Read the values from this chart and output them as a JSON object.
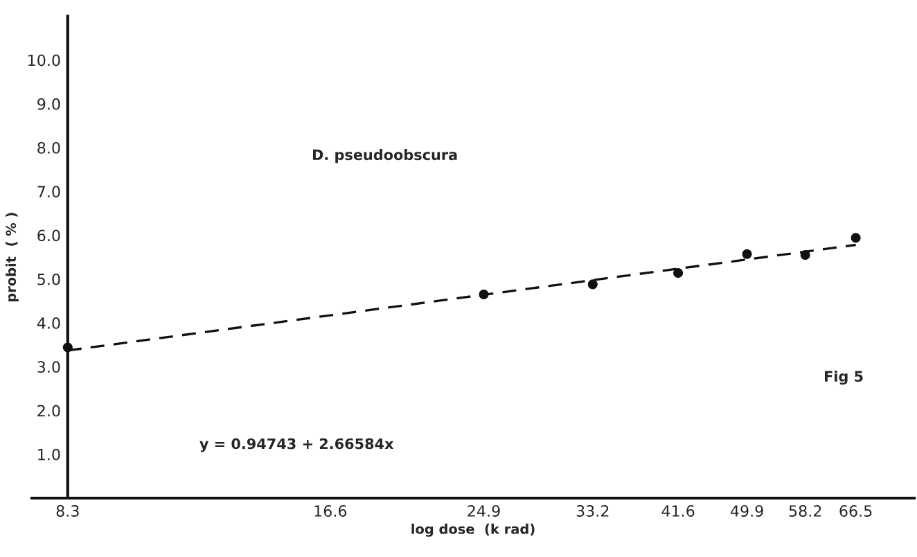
{
  "chart_data": {
    "type": "scatter",
    "xlabel": "log dose  (k rad)",
    "ylabel": "probit  ( % )",
    "log": "x",
    "x": [
      8.3,
      24.9,
      33.2,
      41.6,
      49.9,
      58.2,
      66.5
    ],
    "series": [
      {
        "color": "#111111",
        "marker": "circle",
        "values": [
          3.44,
          4.65,
          4.88,
          5.14,
          5.57,
          5.55,
          5.94
        ]
      },
      {
        "type": "line",
        "color": "#111111",
        "line_style": "dashed",
        "marker": "none",
        "x": [
          8.3,
          66.5
        ],
        "values": [
          3.37,
          5.78
        ]
      }
    ],
    "xlim": [
      7.55,
      77.6
    ],
    "xticks": [
      8.3,
      16.6,
      24.9,
      33.2,
      41.6,
      49.9,
      58.2,
      66.5
    ],
    "ylim": [
      0,
      11
    ],
    "yticks": [
      {
        "value": 1,
        "label": "1.0"
      },
      {
        "value": 2,
        "label": "2.0"
      },
      {
        "value": 3,
        "label": "3.0"
      },
      {
        "value": 4,
        "label": "4.0"
      },
      {
        "value": 5,
        "label": "5.0"
      },
      {
        "value": 6,
        "label": "6.0"
      },
      {
        "value": 7,
        "label": "7.0"
      },
      {
        "value": 8,
        "label": "8.0"
      },
      {
        "value": 9,
        "label": "9.0"
      },
      {
        "value": 10,
        "label": "10.0"
      }
    ],
    "grid": false,
    "legend": false,
    "annotations": [
      "D. pseudoobscura",
      "Fig 5",
      "y = 0.94743 + 2.66584x"
    ]
  }
}
